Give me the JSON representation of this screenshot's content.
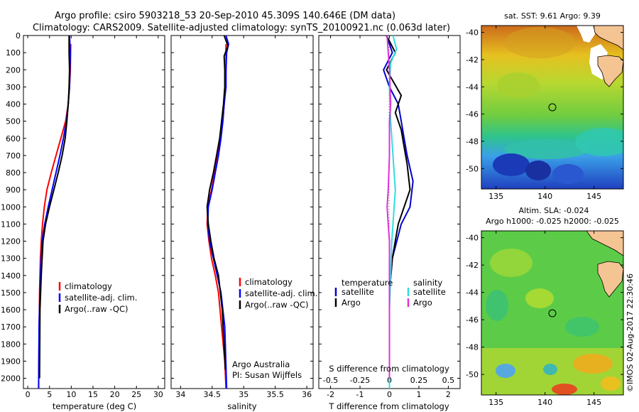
{
  "title_line1": "Argo profile: csiro 5903218_53 20-Sep-2010 45.309S 140.646E (DM data)",
  "title_line2": "Climatology: CARS2009. Satellite-adjusted climatology: synTS_20100921.nc (0.063d later)",
  "watermark": "©IMOS 02-Aug-2017 22:30:46",
  "credit_line1": "Argo Australia",
  "credit_line2": "PI: Susan Wijffels",
  "colors": {
    "climatology": "#ff0000",
    "satellite": "#0000ff",
    "argo": "#000000",
    "t_satellite": "#0000cc",
    "s_satellite": "#33dddd",
    "s_argo": "#dd33dd"
  },
  "chart_data": [
    {
      "type": "line",
      "xlabel": "temperature (deg C)",
      "ylabel": "",
      "xlim": [
        -1,
        31.5
      ],
      "ylim": [
        2060,
        0
      ],
      "x_ticks": [
        0,
        5,
        10,
        15,
        20,
        25,
        30
      ],
      "y_ticks": [
        0,
        100,
        200,
        300,
        400,
        500,
        600,
        700,
        800,
        900,
        1000,
        1100,
        1200,
        1300,
        1400,
        1500,
        1600,
        1700,
        1800,
        1900,
        2000
      ],
      "legend": [
        "climatology",
        "satellite-adj. clim.",
        "Argo(..raw -QC)"
      ],
      "legend_position": "lower-center",
      "series": [
        {
          "name": "climatology",
          "x": [
            9.9,
            9.85,
            9.8,
            9.6,
            9.3,
            8.7,
            7.6,
            6.5,
            5.4,
            4.4,
            3.8,
            3.4,
            3.1,
            2.9,
            2.7,
            2.6,
            2.5
          ],
          "y": [
            50,
            100,
            200,
            300,
            400,
            500,
            600,
            700,
            800,
            900,
            1000,
            1100,
            1200,
            1300,
            1500,
            1800,
            2060
          ]
        },
        {
          "name": "satellite-adj. clim.",
          "x": [
            9.6,
            9.7,
            9.8,
            9.7,
            9.6,
            9.3,
            8.9,
            8.2,
            7.4,
            6.5,
            5.6,
            4.7,
            3.9,
            3.3,
            2.9,
            2.6,
            2.5
          ],
          "y": [
            0,
            50,
            100,
            200,
            300,
            400,
            500,
            600,
            700,
            800,
            900,
            1000,
            1100,
            1200,
            1400,
            1700,
            2060
          ]
        },
        {
          "name": "Argo(..raw -QC)",
          "x": [
            9.5,
            9.5,
            9.6,
            9.5,
            9.3,
            9.0,
            8.6,
            7.9,
            7.0,
            6.0,
            5.0,
            4.1,
            3.5,
            3.1,
            2.8,
            2.7
          ],
          "y": [
            0,
            100,
            200,
            300,
            400,
            500,
            600,
            700,
            800,
            900,
            1000,
            1100,
            1200,
            1400,
            1600,
            2000
          ]
        }
      ]
    },
    {
      "type": "line",
      "xlabel": "salinity",
      "ylabel": "",
      "xlim": [
        33.85,
        36.1
      ],
      "ylim": [
        2060,
        0
      ],
      "x_ticks": [
        34,
        34.5,
        35,
        35.5,
        36
      ],
      "legend": [
        "climatology",
        "satellite-adj. clim.",
        "Argo(..raw -QC)"
      ],
      "legend_position": "lower-center",
      "series": [
        {
          "name": "climatology",
          "x": [
            34.72,
            34.72,
            34.72,
            34.71,
            34.69,
            34.67,
            34.63,
            34.58,
            34.54,
            34.49,
            34.43,
            34.42,
            34.45,
            34.49,
            34.55,
            34.6,
            34.65,
            34.7,
            34.72
          ],
          "y": [
            50,
            100,
            200,
            300,
            400,
            500,
            600,
            700,
            800,
            900,
            1000,
            1100,
            1200,
            1300,
            1400,
            1500,
            1700,
            1900,
            2060
          ]
        },
        {
          "name": "satellite-adj. clim.",
          "x": [
            34.72,
            34.76,
            34.73,
            34.72,
            34.72,
            34.69,
            34.67,
            34.64,
            34.6,
            34.55,
            34.5,
            34.44,
            34.43,
            34.46,
            34.52,
            34.58,
            34.64,
            34.7,
            34.73
          ],
          "y": [
            0,
            50,
            100,
            200,
            300,
            400,
            500,
            600,
            700,
            800,
            900,
            1000,
            1100,
            1200,
            1300,
            1400,
            1500,
            1700,
            2060
          ]
        },
        {
          "name": "Argo(..raw -QC)",
          "x": [
            34.69,
            34.75,
            34.69,
            34.7,
            34.7,
            34.68,
            34.65,
            34.62,
            34.57,
            34.52,
            34.46,
            34.42,
            34.44,
            34.48,
            34.53,
            34.6,
            34.66,
            34.71
          ],
          "y": [
            0,
            60,
            120,
            200,
            300,
            400,
            500,
            600,
            700,
            800,
            900,
            1000,
            1100,
            1200,
            1300,
            1400,
            1600,
            1950
          ]
        }
      ]
    },
    {
      "type": "line",
      "xlabel": "T difference from climatology",
      "xlabel2": "S difference from climatology",
      "ylabel": "",
      "xlim": [
        -2.4,
        2.4
      ],
      "x2lim": [
        -0.6,
        0.6
      ],
      "ylim": [
        2060,
        0
      ],
      "x_ticks": [
        -2,
        -1,
        0,
        1,
        2
      ],
      "x2_ticks": [
        -0.5,
        -0.25,
        0,
        0.25,
        0.5
      ],
      "x2_tick_labels": [
        "-0.5",
        "-0.25",
        "0",
        "0.25",
        "0.5"
      ],
      "legend_temperature_title": "temperature",
      "legend_salinity_title": "salinity",
      "legend_temperature": [
        "satellite",
        "Argo"
      ],
      "legend_salinity": [
        "satellite",
        "Argo"
      ],
      "series": [
        {
          "name": "T satellite",
          "axis": "T",
          "x": [
            -0.1,
            0.1,
            -0.2,
            0.0,
            0.3,
            0.4,
            0.5,
            0.6,
            0.8,
            0.7,
            0.4,
            0.1,
            0.0,
            0.0,
            0.0
          ],
          "y": [
            0,
            100,
            200,
            300,
            400,
            500,
            600,
            700,
            850,
            1000,
            1100,
            1300,
            1500,
            1800,
            2060
          ]
        },
        {
          "name": "T Argo",
          "axis": "T",
          "x": [
            -0.1,
            0.2,
            -0.1,
            0.4,
            0.2,
            0.4,
            0.5,
            0.6,
            0.7,
            0.5,
            0.3,
            0.1,
            0.0,
            0.0
          ],
          "y": [
            0,
            100,
            200,
            350,
            450,
            550,
            650,
            750,
            900,
            1000,
            1100,
            1300,
            1500,
            2000
          ]
        },
        {
          "name": "S satellite",
          "axis": "S",
          "x": [
            0.03,
            0.06,
            0.01,
            0.0,
            0.01,
            0.03,
            0.04,
            0.05,
            0.04,
            0.03,
            0.02,
            0.01,
            0.0,
            0.0,
            0.0
          ],
          "y": [
            0,
            80,
            160,
            300,
            500,
            700,
            800,
            900,
            1000,
            1100,
            1200,
            1400,
            1600,
            1800,
            2060
          ]
        },
        {
          "name": "S Argo",
          "axis": "S",
          "x": [
            -0.02,
            0.0,
            0.01,
            0.0,
            0.0,
            -0.01,
            -0.02,
            -0.01,
            0.0,
            0.0,
            0.0,
            0.0
          ],
          "y": [
            0,
            200,
            400,
            500,
            700,
            900,
            1000,
            1100,
            1200,
            1400,
            1700,
            2000
          ]
        }
      ]
    },
    {
      "type": "heatmap",
      "title": "sat. SST: 9.61  Argo: 9.39",
      "xlabel": "",
      "ylabel": "",
      "xlim": [
        133.5,
        148
      ],
      "ylim": [
        -51.5,
        -39.5
      ],
      "x_ticks": [
        135,
        140,
        145
      ],
      "y_ticks": [
        -40,
        -42,
        -44,
        -46,
        -48,
        -50
      ],
      "marker": {
        "lon": 140.646,
        "lat": -45.309
      }
    },
    {
      "type": "heatmap",
      "title": "Altim. SLA: -0.024",
      "subtitle": "Argo h1000: -0.025  h2000: -0.025",
      "xlabel": "",
      "ylabel": "",
      "xlim": [
        133.5,
        148
      ],
      "ylim": [
        -51.5,
        -39.5
      ],
      "x_ticks": [
        135,
        140,
        145
      ],
      "y_ticks": [
        -40,
        -42,
        -44,
        -46,
        -48,
        -50
      ],
      "marker": {
        "lon": 140.646,
        "lat": -45.309
      }
    }
  ]
}
